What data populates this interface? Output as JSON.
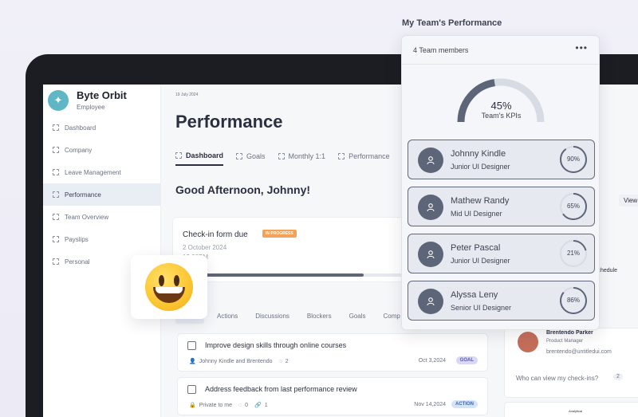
{
  "sidebar": {
    "brand_name": "Byte Orbit",
    "brand_role": "Employee",
    "items": [
      {
        "label": "Dashboard"
      },
      {
        "label": "Company"
      },
      {
        "label": "Leave Management"
      },
      {
        "label": "Performance"
      },
      {
        "label": "Team Overview"
      },
      {
        "label": "Payslips"
      },
      {
        "label": "Personal"
      }
    ]
  },
  "main": {
    "date": "19 July 2024",
    "title": "Performance",
    "tabs": [
      {
        "label": "Dashboard"
      },
      {
        "label": "Goals"
      },
      {
        "label": "Monthly 1:1"
      },
      {
        "label": "Performance"
      }
    ],
    "greeting": "Good Afternoon, Johnny!",
    "checkin": {
      "title": "Check-in form due",
      "badge": "IN PROGRESS",
      "date": "2 October 2024",
      "time": "12:00PM",
      "progress": 0.8
    },
    "sub_tabs": [
      "Actions",
      "Discussions",
      "Blockers",
      "Goals",
      "Comp"
    ],
    "tasks": [
      {
        "title": "Improve design skills through online courses",
        "meta": "Johnny Kindle and Brentendo",
        "comments": "2",
        "date": "Oct 3,2024",
        "badge": "GOAL"
      },
      {
        "title": "Address feedback from last performance review",
        "meta": "Private to me",
        "comments": "0",
        "links": "1",
        "date": "Nov 14,2024",
        "badge": "ACTION"
      }
    ],
    "right_panel": {
      "name": "Brentendo Parker",
      "role": "Product Manager",
      "email": "brentendo@untitledui.com",
      "question": "Who can view my check-ins?",
      "count": "2",
      "schedule_text": "schedule",
      "view_label": "View",
      "analytics_label": "Analytical"
    }
  },
  "widget": {
    "title": "My Team's Performance",
    "count_label": "4 Team members",
    "more_label": "•••",
    "kpi_percent": "45%",
    "kpi_value": 0.45,
    "kpi_label": "Team's KPIs",
    "members": [
      {
        "name": "Johnny Kindle",
        "role": "Junior UI Designer",
        "percent": "90%",
        "value": 0.9
      },
      {
        "name": "Mathew Randy",
        "role": "Mid UI Designer",
        "percent": "65%",
        "value": 0.65
      },
      {
        "name": "Peter Pascal",
        "role": "Junior UI Designer",
        "percent": "21%",
        "value": 0.21
      },
      {
        "name": "Alyssa Leny",
        "role": "Senior UI Designer",
        "percent": "86%",
        "value": 0.86
      }
    ]
  },
  "colors": {
    "accent": "#5d6578",
    "ring_track": "#d7dbe3",
    "ring_fill": "#5d6578",
    "badge_orange": "#f3a257"
  }
}
